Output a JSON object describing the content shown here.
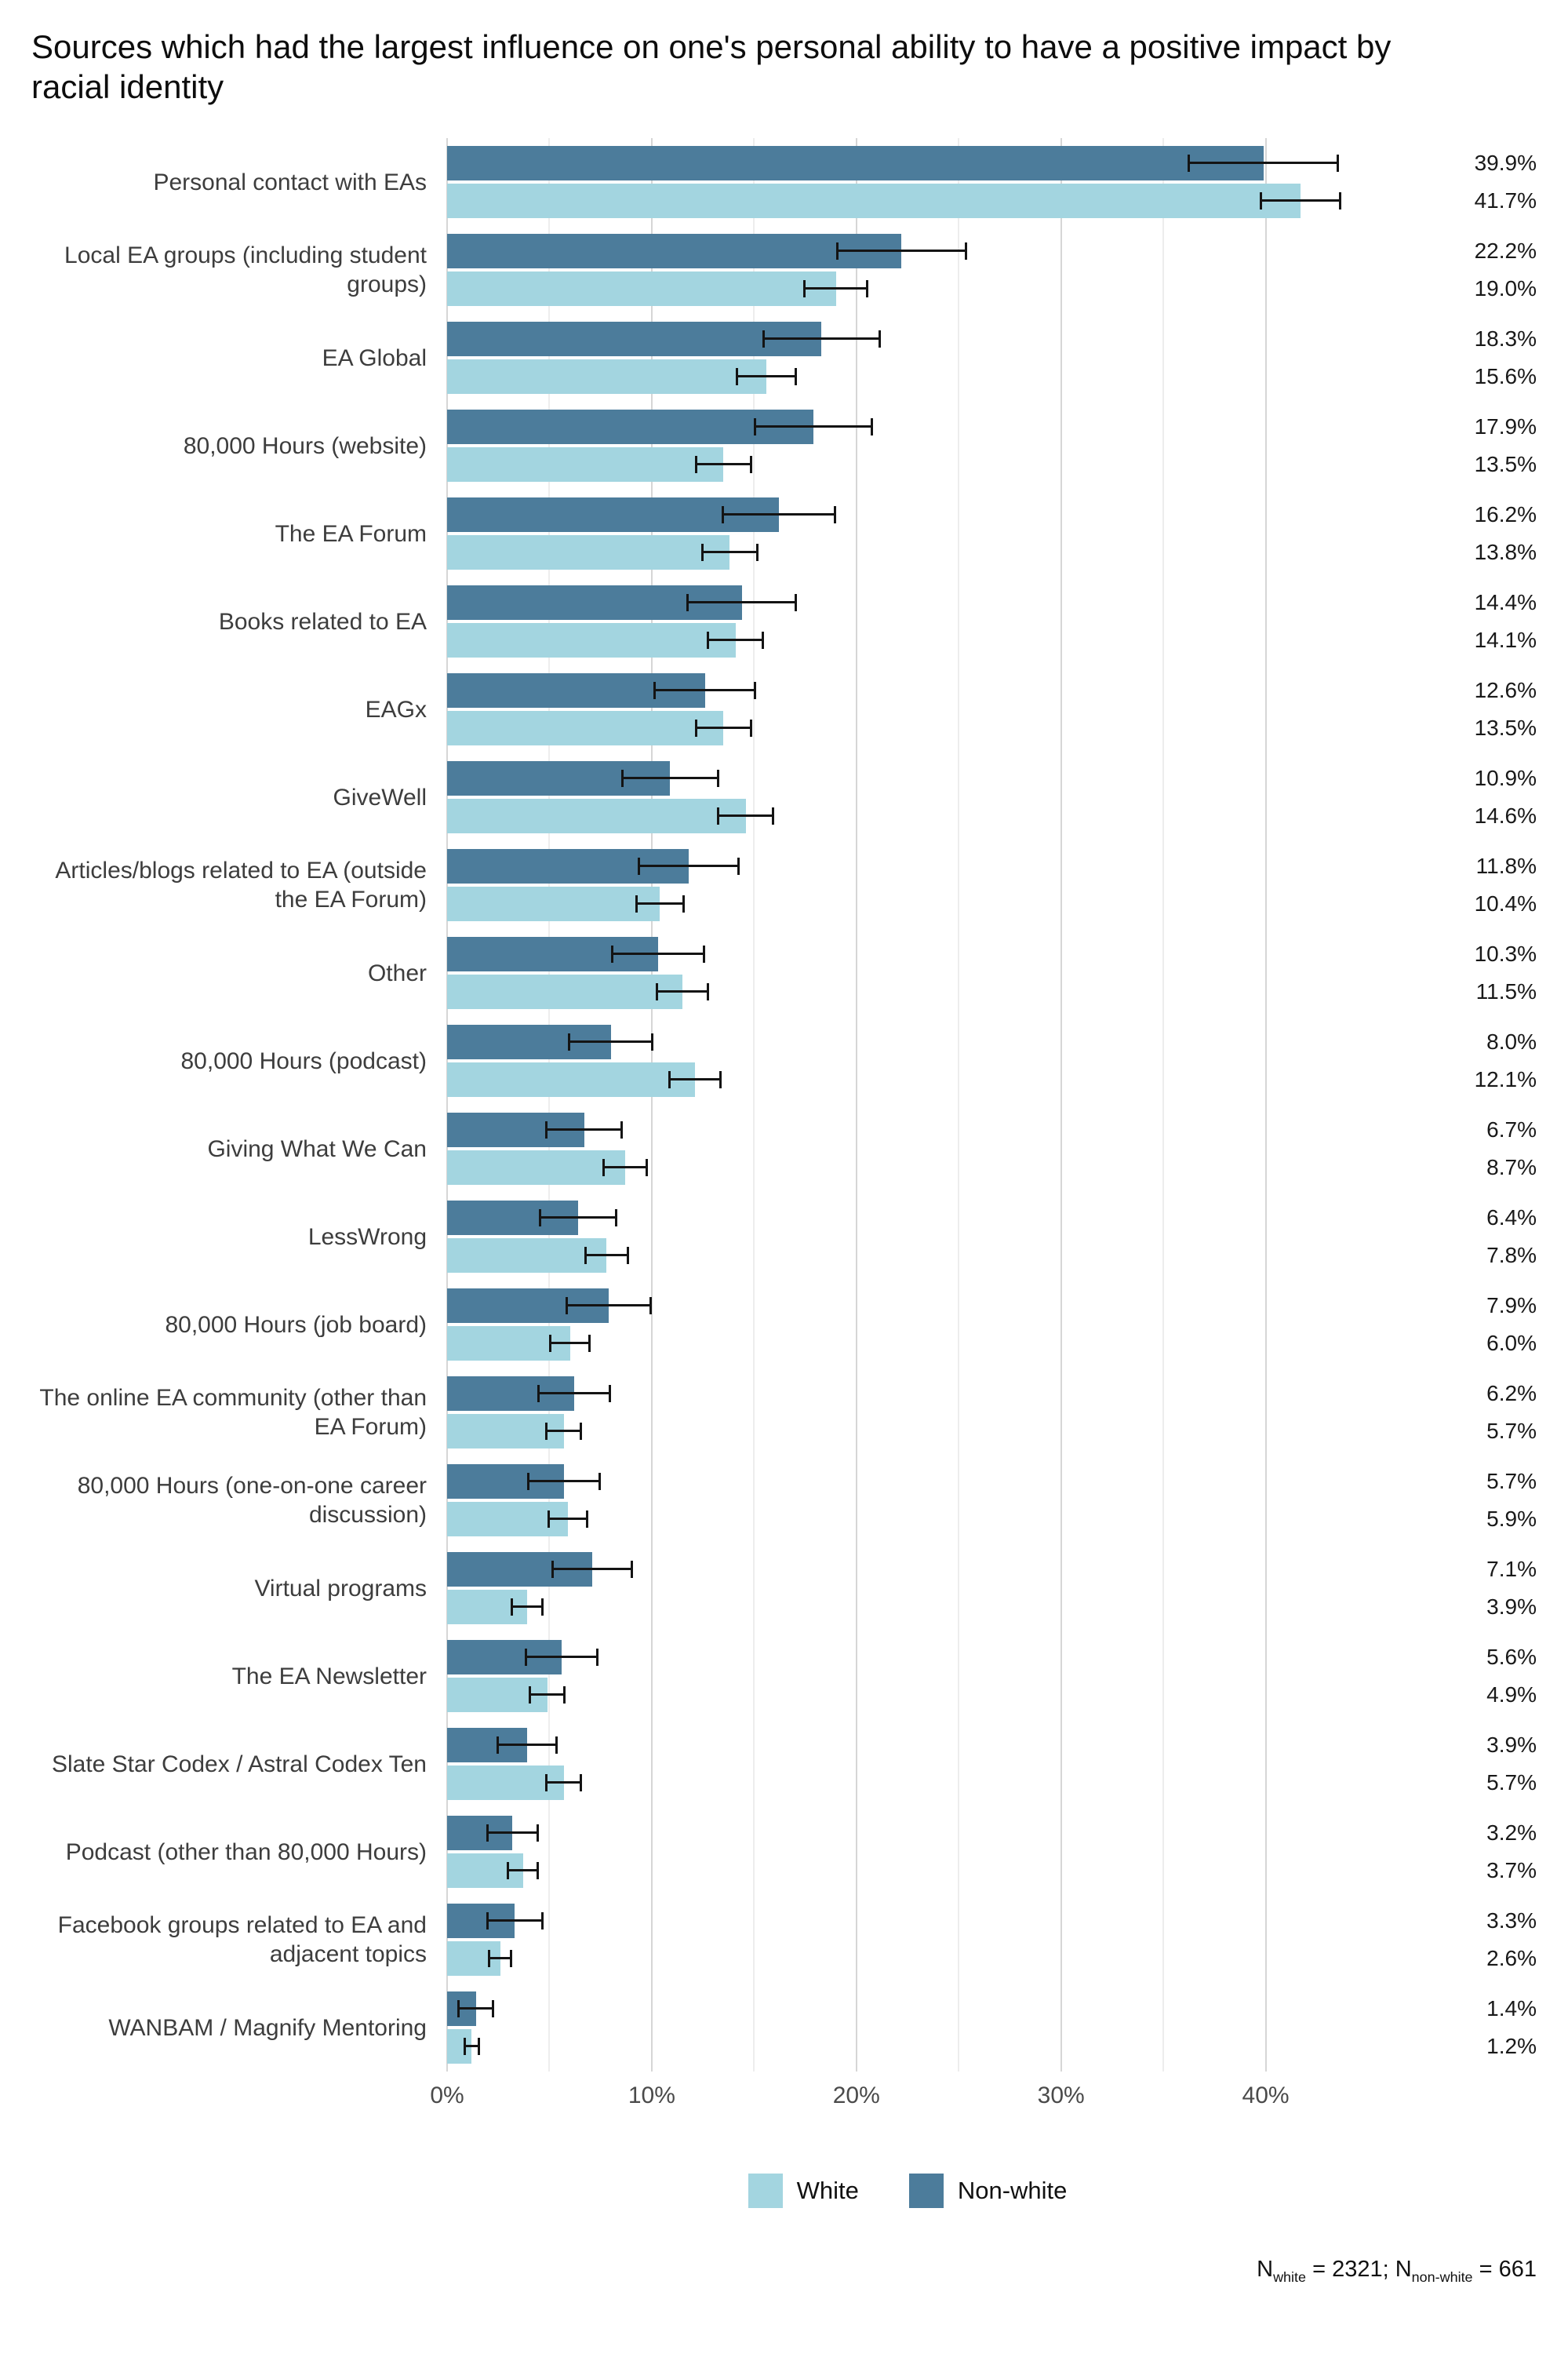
{
  "title": "Sources which had the largest influence on one's personal ability to have a positive impact by racial identity",
  "chart_data": {
    "type": "bar",
    "orientation": "horizontal",
    "title": "Sources which had the largest influence on one's personal ability to have a positive impact by racial identity",
    "xlabel": "",
    "ylabel": "",
    "xlim": [
      0,
      45
    ],
    "grid": true,
    "legend_position": "bottom",
    "x_ticks": [
      "0%",
      "10%",
      "20%",
      "30%",
      "40%"
    ],
    "x_tick_values": [
      0,
      10,
      20,
      30,
      40
    ],
    "x_minor_ticks": [
      5,
      15,
      25,
      35
    ],
    "categories": [
      "Personal contact with EAs",
      "Local EA groups (including student groups)",
      "EA Global",
      "80,000 Hours (website)",
      "The EA Forum",
      "Books related to EA",
      "EAGx",
      "GiveWell",
      "Articles/blogs related to EA (outside the EA Forum)",
      "Other",
      "80,000 Hours (podcast)",
      "Giving What We Can",
      "LessWrong",
      "80,000 Hours (job board)",
      "The online EA community (other than EA Forum)",
      "80,000 Hours (one-on-one career discussion)",
      "Virtual programs",
      "The EA Newsletter",
      "Slate Star Codex / Astral Codex Ten",
      "Podcast (other than 80,000 Hours)",
      "Facebook groups related to EA and adjacent topics",
      "WANBAM / Magnify Mentoring"
    ],
    "series": [
      {
        "name": "Non-white",
        "color": "#4c7c9b",
        "values": [
          39.9,
          22.2,
          18.3,
          17.9,
          16.2,
          14.4,
          12.6,
          10.9,
          11.8,
          10.3,
          8.0,
          6.7,
          6.4,
          7.9,
          6.2,
          5.7,
          7.1,
          5.6,
          3.9,
          3.2,
          3.3,
          1.4
        ],
        "labels": [
          "39.9%",
          "22.2%",
          "18.3%",
          "17.9%",
          "16.2%",
          "14.4%",
          "12.6%",
          "10.9%",
          "11.8%",
          "10.3%",
          "8.0%",
          "6.7%",
          "6.4%",
          "7.9%",
          "6.2%",
          "5.7%",
          "7.1%",
          "5.6%",
          "3.9%",
          "3.2%",
          "3.3%",
          "1.4%"
        ],
        "ci95": [
          3.7,
          3.2,
          2.9,
          2.9,
          2.8,
          2.7,
          2.5,
          2.4,
          2.5,
          2.3,
          2.1,
          1.9,
          1.9,
          2.1,
          1.8,
          1.8,
          2.0,
          1.8,
          1.5,
          1.3,
          1.4,
          0.9
        ]
      },
      {
        "name": "White",
        "color": "#a3d5e0",
        "values": [
          41.7,
          19.0,
          15.6,
          13.5,
          13.8,
          14.1,
          13.5,
          14.6,
          10.4,
          11.5,
          12.1,
          8.7,
          7.8,
          6.0,
          5.7,
          5.9,
          3.9,
          4.9,
          5.7,
          3.7,
          2.6,
          1.2
        ],
        "labels": [
          "41.7%",
          "19.0%",
          "15.6%",
          "13.5%",
          "13.8%",
          "14.1%",
          "13.5%",
          "14.6%",
          "10.4%",
          "11.5%",
          "12.1%",
          "8.7%",
          "7.8%",
          "6.0%",
          "5.7%",
          "5.9%",
          "3.9%",
          "4.9%",
          "5.7%",
          "3.7%",
          "2.6%",
          "1.2%"
        ],
        "ci95": [
          2.0,
          1.6,
          1.5,
          1.4,
          1.4,
          1.4,
          1.4,
          1.4,
          1.2,
          1.3,
          1.3,
          1.1,
          1.1,
          1.0,
          0.9,
          1.0,
          0.8,
          0.9,
          0.9,
          0.8,
          0.6,
          0.4
        ]
      }
    ]
  },
  "legend": {
    "items": [
      {
        "label": "White",
        "color": "#a3d5e0"
      },
      {
        "label": "Non-white",
        "color": "#4c7c9b"
      }
    ]
  },
  "footer": {
    "segments": [
      {
        "t": "N"
      },
      {
        "t": "white",
        "sub": true
      },
      {
        "t": " = 2321; N"
      },
      {
        "t": "non-white",
        "sub": true
      },
      {
        "t": " = 661"
      }
    ]
  }
}
